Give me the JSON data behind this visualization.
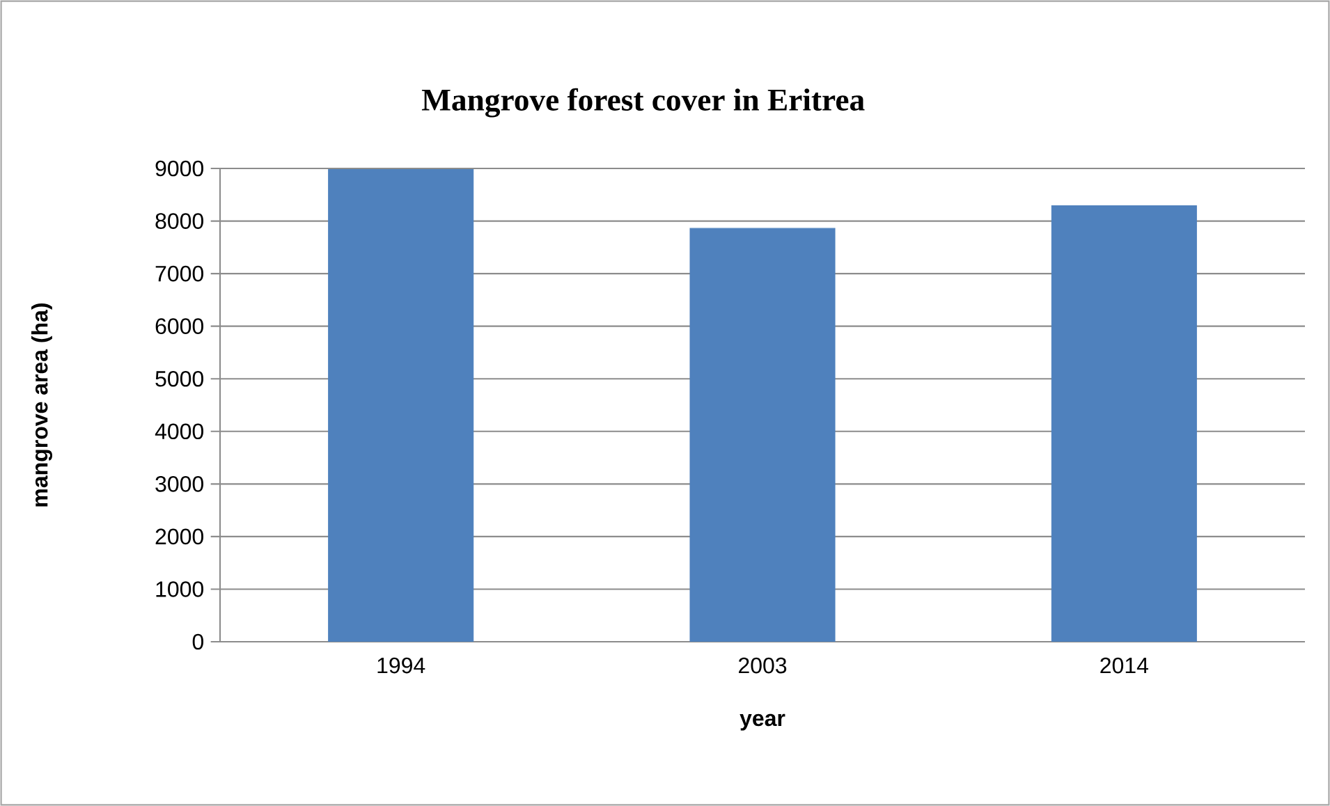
{
  "chart_data": {
    "type": "bar",
    "title": "Mangrove forest cover in Eritrea",
    "xlabel": "year",
    "ylabel": "mangrove area (ha)",
    "categories": [
      "1994",
      "2003",
      "2014"
    ],
    "values": [
      8980,
      7860,
      8290
    ],
    "color": "#4f81bd",
    "ylim": [
      0,
      9000
    ],
    "yticks": [
      0,
      1000,
      2000,
      3000,
      4000,
      5000,
      6000,
      7000,
      8000,
      9000
    ],
    "grid": "y"
  }
}
